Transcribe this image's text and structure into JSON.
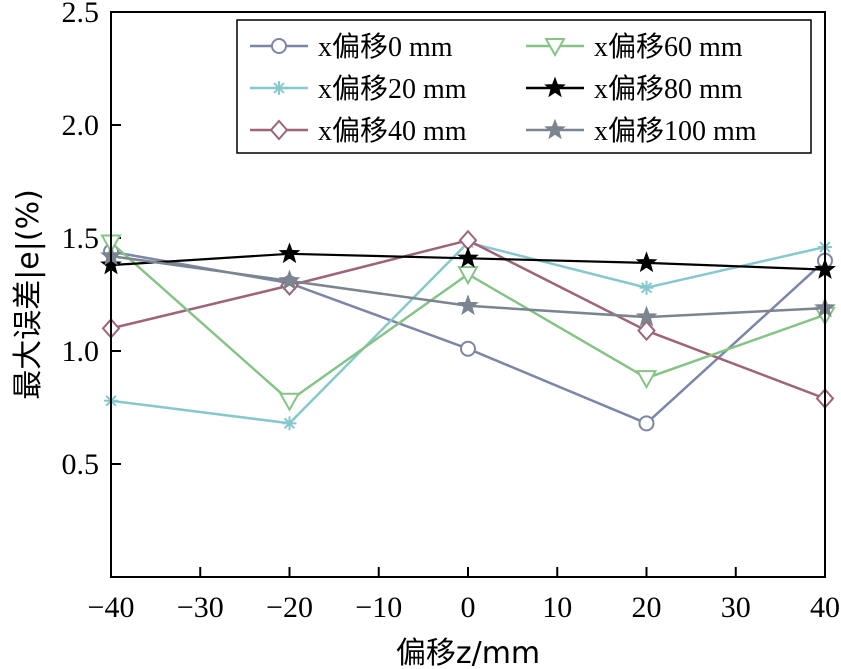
{
  "chart_data": {
    "type": "line",
    "x": [
      -40,
      -20,
      0,
      20,
      40
    ],
    "xlim": [
      -40,
      40
    ],
    "ylim": [
      0,
      2.5
    ],
    "xticks": [
      -40,
      -30,
      -20,
      -10,
      0,
      10,
      20,
      30,
      40
    ],
    "xtick_labels": [
      "−40",
      "−30",
      "−20",
      "−10",
      "0",
      "10",
      "20",
      "30",
      "40"
    ],
    "yticks": [
      0.5,
      1.0,
      1.5,
      2.0,
      2.5
    ],
    "ytick_labels": [
      "0.5",
      "1.0",
      "1.5",
      "2.0",
      "2.5"
    ],
    "xlabel": "偏移z/mm",
    "ylabel": "最大误差|e|(%)",
    "grid": false,
    "legend_position": "top-right",
    "series": [
      {
        "name": "x偏移0 mm",
        "values": [
          1.44,
          1.3,
          1.01,
          0.68,
          1.4
        ],
        "color": "#7b86a8",
        "marker": "circle"
      },
      {
        "name": "x偏移20 mm",
        "values": [
          0.78,
          0.68,
          1.48,
          1.28,
          1.46
        ],
        "color": "#86c8cc",
        "marker": "asterisk"
      },
      {
        "name": "x偏移40 mm",
        "values": [
          1.1,
          1.29,
          1.49,
          1.09,
          0.79
        ],
        "color": "#9e6478",
        "marker": "diamond"
      },
      {
        "name": "x偏移60 mm",
        "values": [
          1.48,
          0.78,
          1.34,
          0.88,
          1.16
        ],
        "color": "#86c486",
        "marker": "triangle-down"
      },
      {
        "name": "x偏移80 mm",
        "values": [
          1.38,
          1.43,
          1.41,
          1.39,
          1.36
        ],
        "color": "#000000",
        "marker": "star"
      },
      {
        "name": "x偏移100 mm",
        "values": [
          1.42,
          1.31,
          1.2,
          1.15,
          1.19
        ],
        "color": "#7a8590",
        "marker": "star"
      }
    ],
    "legend_columns": [
      [
        "x偏移0 mm",
        "x偏移20 mm",
        "x偏移40 mm"
      ],
      [
        "x偏移60 mm",
        "x偏移80 mm",
        "x偏移100 mm"
      ]
    ]
  }
}
